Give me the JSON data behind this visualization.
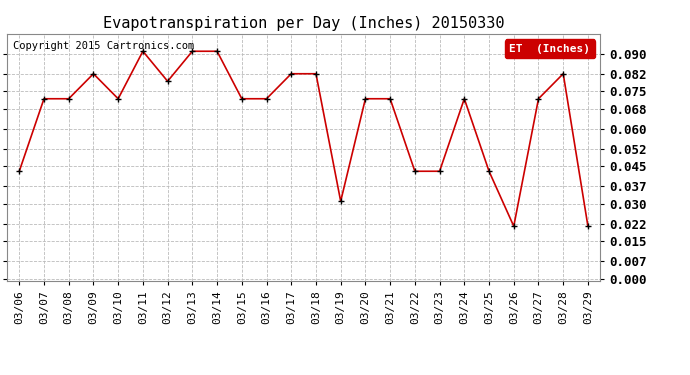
{
  "title": "Evapotranspiration per Day (Inches) 20150330",
  "copyright_text": "Copyright 2015 Cartronics.com",
  "legend_label": "ET  (Inches)",
  "dates": [
    "03/06",
    "03/07",
    "03/08",
    "03/09",
    "03/10",
    "03/11",
    "03/12",
    "03/13",
    "03/14",
    "03/15",
    "03/16",
    "03/17",
    "03/18",
    "03/19",
    "03/20",
    "03/21",
    "03/22",
    "03/23",
    "03/24",
    "03/25",
    "03/26",
    "03/27",
    "03/28",
    "03/29"
  ],
  "values": [
    0.043,
    0.072,
    0.072,
    0.082,
    0.072,
    0.091,
    0.079,
    0.091,
    0.091,
    0.072,
    0.072,
    0.082,
    0.082,
    0.031,
    0.072,
    0.072,
    0.043,
    0.043,
    0.072,
    0.043,
    0.021,
    0.072,
    0.082,
    0.021
  ],
  "ylim": [
    -0.001,
    0.098
  ],
  "yticks": [
    0.0,
    0.007,
    0.015,
    0.022,
    0.03,
    0.037,
    0.045,
    0.052,
    0.06,
    0.068,
    0.075,
    0.082,
    0.09
  ],
  "ytick_labels": [
    "0.000",
    "0.007",
    "0.015",
    "0.022",
    "0.030",
    "0.037",
    "0.045",
    "0.052",
    "0.060",
    "0.068",
    "0.075",
    "0.082",
    "0.090"
  ],
  "line_color": "#cc0000",
  "marker_color": "#000000",
  "legend_bg_color": "#cc0000",
  "legend_text_color": "#ffffff",
  "grid_color": "#bbbbbb",
  "bg_color": "#ffffff",
  "plot_bg_color": "#ffffff",
  "title_fontsize": 11,
  "tick_fontsize": 8,
  "ytick_fontsize": 9,
  "copyright_fontsize": 7.5
}
